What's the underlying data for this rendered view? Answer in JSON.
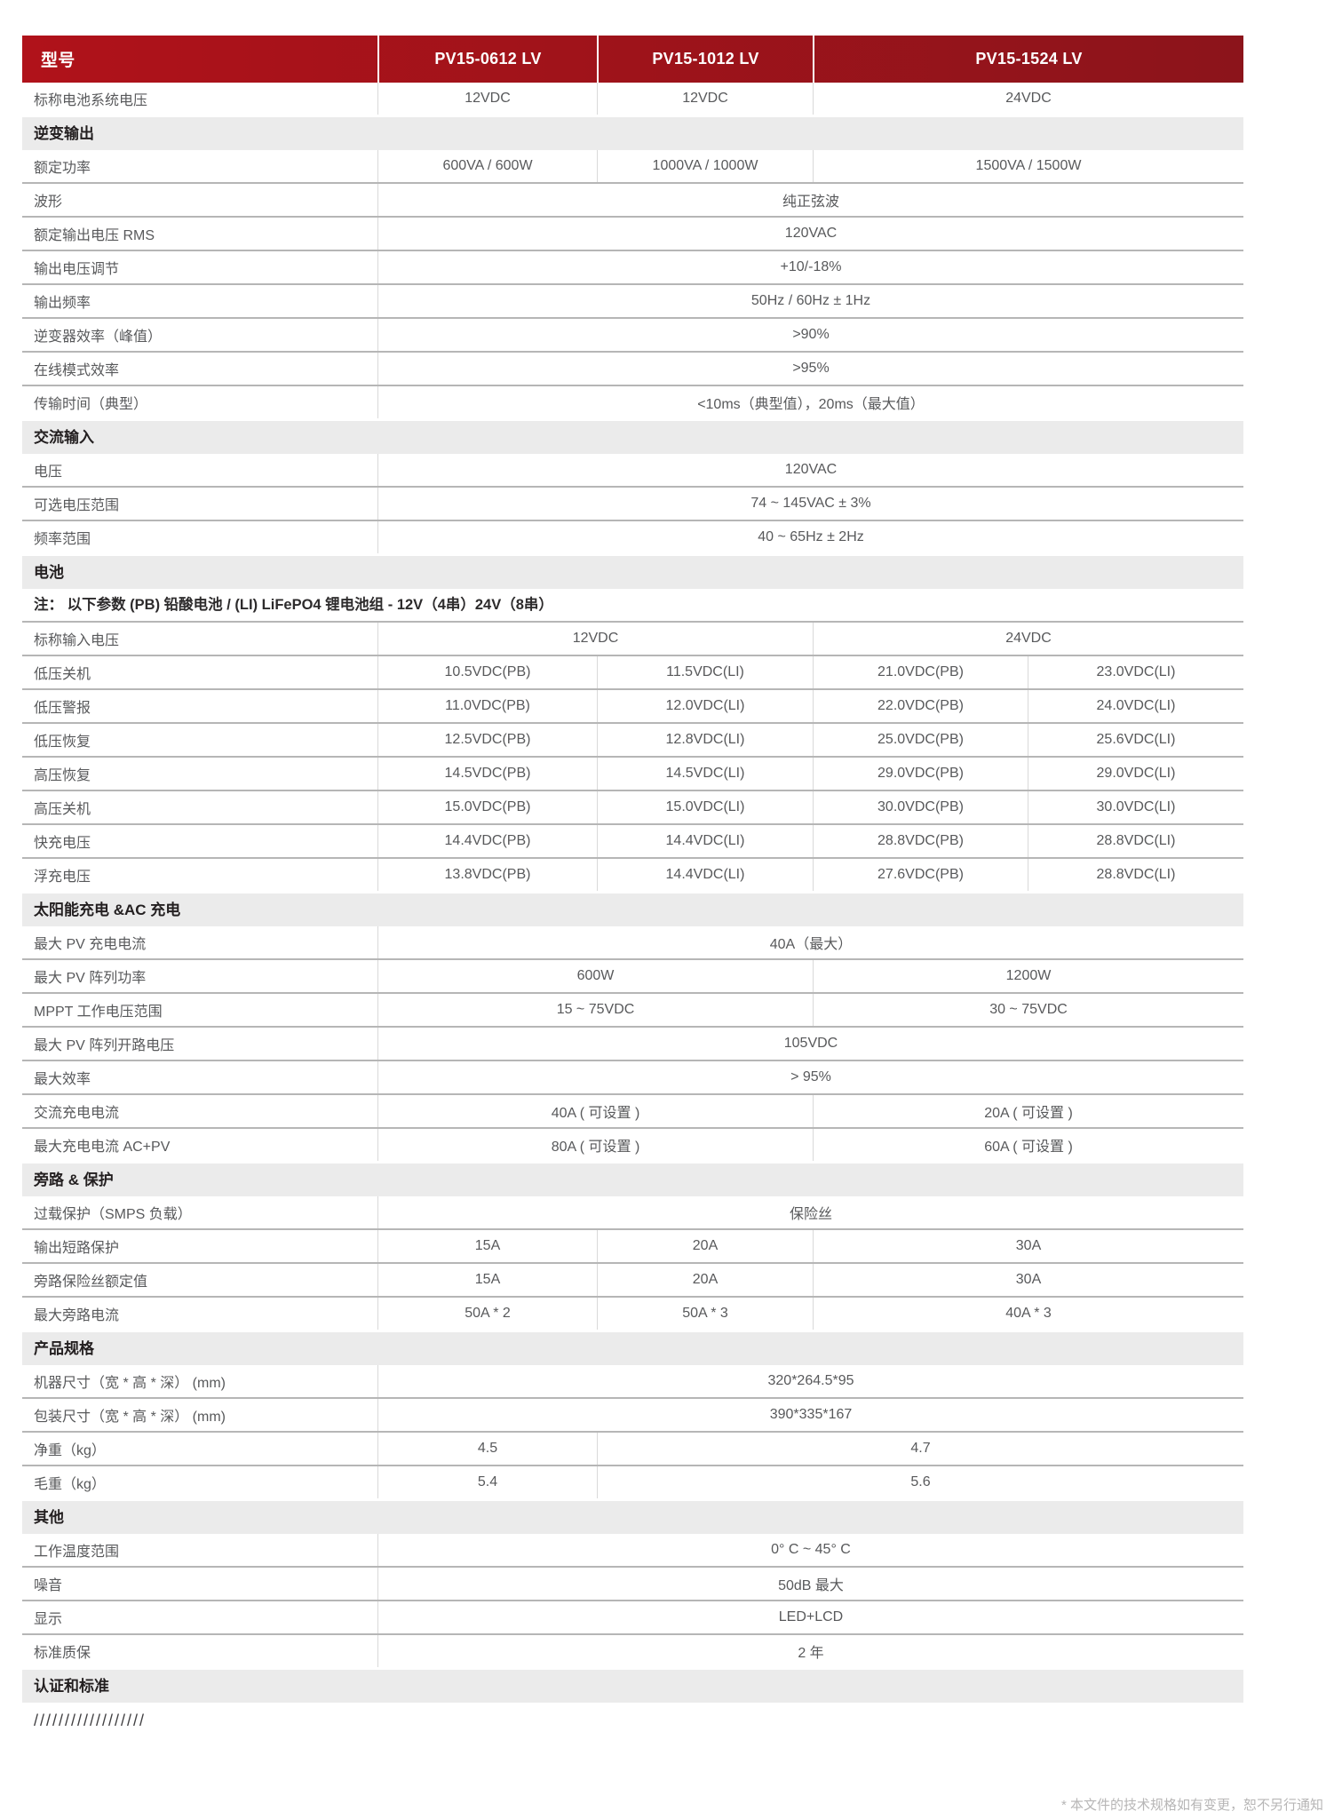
{
  "table": {
    "header": {
      "col0": "型号",
      "models": [
        {
          "text": "PV15-0612 LV",
          "span": 1
        },
        {
          "text": "PV15-1012 LV",
          "span": 1
        },
        {
          "text": "PV15-1524 LV",
          "span": 2
        }
      ]
    },
    "sections": [
      {
        "title": "",
        "rows": [
          {
            "label": "标称电池系统电压",
            "cells": [
              {
                "text": "12VDC",
                "span": 1
              },
              {
                "text": "12VDC",
                "span": 1
              },
              {
                "text": "24VDC",
                "span": 2
              }
            ]
          }
        ]
      },
      {
        "title": "逆变输出",
        "rows": [
          {
            "label": "额定功率",
            "cells": [
              {
                "text": "600VA / 600W",
                "span": 1
              },
              {
                "text": "1000VA / 1000W",
                "span": 1
              },
              {
                "text": "1500VA / 1500W",
                "span": 2
              }
            ]
          },
          {
            "label": "波形",
            "cells": [
              {
                "text": "纯正弦波",
                "span": 4
              }
            ]
          },
          {
            "label": "额定输出电压 RMS",
            "cells": [
              {
                "text": "120VAC",
                "span": 4
              }
            ]
          },
          {
            "label": "输出电压调节",
            "cells": [
              {
                "text": "+10/-18%",
                "span": 4
              }
            ]
          },
          {
            "label": "输出频率",
            "cells": [
              {
                "text": "50Hz / 60Hz ± 1Hz",
                "span": 4
              }
            ]
          },
          {
            "label": "逆变器效率（峰值）",
            "cells": [
              {
                "text": ">90%",
                "span": 4
              }
            ]
          },
          {
            "label": "在线模式效率",
            "cells": [
              {
                "text": ">95%",
                "span": 4
              }
            ]
          },
          {
            "label": "传输时间（典型）",
            "cells": [
              {
                "text": "<10ms（典型值），20ms（最大值）",
                "span": 4
              }
            ]
          }
        ]
      },
      {
        "title": "交流输入",
        "rows": [
          {
            "label": "电压",
            "cells": [
              {
                "text": "120VAC",
                "span": 4
              }
            ]
          },
          {
            "label": "可选电压范围",
            "cells": [
              {
                "text": "74 ~ 145VAC ± 3%",
                "span": 4
              }
            ]
          },
          {
            "label": "频率范围",
            "cells": [
              {
                "text": "40 ~ 65Hz ± 2Hz",
                "span": 4
              }
            ]
          }
        ]
      },
      {
        "title": "电池",
        "rows": [
          {
            "note": "注： 以下参数 (PB) 铅酸电池 / (LI) LiFePO4 锂电池组 - 12V（4串）24V（8串）"
          },
          {
            "label": "标称输入电压",
            "cells": [
              {
                "text": "12VDC",
                "span": 2
              },
              {
                "text": "24VDC",
                "span": 2
              }
            ]
          },
          {
            "label": "低压关机",
            "cells": [
              {
                "text": "10.5VDC(PB)",
                "span": 1
              },
              {
                "text": "11.5VDC(LI)",
                "span": 1
              },
              {
                "text": "21.0VDC(PB)",
                "span": 1
              },
              {
                "text": "23.0VDC(LI)",
                "span": 1
              }
            ]
          },
          {
            "label": "低压警报",
            "cells": [
              {
                "text": "11.0VDC(PB)",
                "span": 1
              },
              {
                "text": "12.0VDC(LI)",
                "span": 1
              },
              {
                "text": "22.0VDC(PB)",
                "span": 1
              },
              {
                "text": "24.0VDC(LI)",
                "span": 1
              }
            ]
          },
          {
            "label": "低压恢复",
            "cells": [
              {
                "text": "12.5VDC(PB)",
                "span": 1
              },
              {
                "text": "12.8VDC(LI)",
                "span": 1
              },
              {
                "text": "25.0VDC(PB)",
                "span": 1
              },
              {
                "text": "25.6VDC(LI)",
                "span": 1
              }
            ]
          },
          {
            "label": "高压恢复",
            "cells": [
              {
                "text": "14.5VDC(PB)",
                "span": 1
              },
              {
                "text": "14.5VDC(LI)",
                "span": 1
              },
              {
                "text": "29.0VDC(PB)",
                "span": 1
              },
              {
                "text": "29.0VDC(LI)",
                "span": 1
              }
            ]
          },
          {
            "label": "高压关机",
            "cells": [
              {
                "text": "15.0VDC(PB)",
                "span": 1
              },
              {
                "text": "15.0VDC(LI)",
                "span": 1
              },
              {
                "text": "30.0VDC(PB)",
                "span": 1
              },
              {
                "text": "30.0VDC(LI)",
                "span": 1
              }
            ]
          },
          {
            "label": "快充电压",
            "cells": [
              {
                "text": "14.4VDC(PB)",
                "span": 1
              },
              {
                "text": "14.4VDC(LI)",
                "span": 1
              },
              {
                "text": "28.8VDC(PB)",
                "span": 1
              },
              {
                "text": "28.8VDC(LI)",
                "span": 1
              }
            ]
          },
          {
            "label": "浮充电压",
            "cells": [
              {
                "text": "13.8VDC(PB)",
                "span": 1
              },
              {
                "text": "14.4VDC(LI)",
                "span": 1
              },
              {
                "text": "27.6VDC(PB)",
                "span": 1
              },
              {
                "text": "28.8VDC(LI)",
                "span": 1
              }
            ]
          }
        ]
      },
      {
        "title": "太阳能充电 &AC 充电",
        "rows": [
          {
            "label": "最大 PV 充电电流",
            "cells": [
              {
                "text": "40A（最大）",
                "span": 4
              }
            ]
          },
          {
            "label": "最大 PV 阵列功率",
            "cells": [
              {
                "text": "600W",
                "span": 2
              },
              {
                "text": "1200W",
                "span": 2
              }
            ]
          },
          {
            "label": "MPPT 工作电压范围",
            "cells": [
              {
                "text": "15 ~ 75VDC",
                "span": 2
              },
              {
                "text": "30 ~ 75VDC",
                "span": 2
              }
            ]
          },
          {
            "label": "最大 PV 阵列开路电压",
            "cells": [
              {
                "text": "105VDC",
                "span": 4
              }
            ]
          },
          {
            "label": "最大效率",
            "cells": [
              {
                "text": "> 95%",
                "span": 4
              }
            ]
          },
          {
            "label": "交流充电电流",
            "cells": [
              {
                "text": "40A ( 可设置 )",
                "span": 2
              },
              {
                "text": "20A ( 可设置 )",
                "span": 2
              }
            ]
          },
          {
            "label": "最大充电电流 AC+PV",
            "cells": [
              {
                "text": "80A ( 可设置 )",
                "span": 2
              },
              {
                "text": "60A ( 可设置 )",
                "span": 2
              }
            ]
          }
        ]
      },
      {
        "title": "旁路 & 保护",
        "rows": [
          {
            "label": "过载保护（SMPS 负载）",
            "cells": [
              {
                "text": "保险丝",
                "span": 4
              }
            ]
          },
          {
            "label": "输出短路保护",
            "cells": [
              {
                "text": "15A",
                "span": 1
              },
              {
                "text": "20A",
                "span": 1
              },
              {
                "text": "30A",
                "span": 2
              }
            ]
          },
          {
            "label": "旁路保险丝额定值",
            "cells": [
              {
                "text": "15A",
                "span": 1
              },
              {
                "text": "20A",
                "span": 1
              },
              {
                "text": "30A",
                "span": 2
              }
            ]
          },
          {
            "label": "最大旁路电流",
            "cells": [
              {
                "text": "50A * 2",
                "span": 1
              },
              {
                "text": "50A * 3",
                "span": 1
              },
              {
                "text": "40A * 3",
                "span": 2
              }
            ]
          }
        ]
      },
      {
        "title": "产品规格",
        "rows": [
          {
            "label": "机器尺寸（宽 * 高 * 深） (mm)",
            "cells": [
              {
                "text": "320*264.5*95",
                "span": 4
              }
            ]
          },
          {
            "label": "包装尺寸（宽 * 高 * 深） (mm)",
            "cells": [
              {
                "text": "390*335*167",
                "span": 4
              }
            ]
          },
          {
            "label": "净重（kg）",
            "cells": [
              {
                "text": "4.5",
                "span": 1
              },
              {
                "text": "4.7",
                "span": 3
              }
            ]
          },
          {
            "label": "毛重（kg）",
            "cells": [
              {
                "text": "5.4",
                "span": 1
              },
              {
                "text": "5.6",
                "span": 3
              }
            ]
          }
        ]
      },
      {
        "title": "其他",
        "rows": [
          {
            "label": "工作温度范围",
            "cells": [
              {
                "text": "0° C ~ 45° C",
                "span": 4
              }
            ]
          },
          {
            "label": "噪音",
            "cells": [
              {
                "text": "50dB 最大",
                "span": 4
              }
            ]
          },
          {
            "label": "显示",
            "cells": [
              {
                "text": "LED+LCD",
                "span": 4
              }
            ]
          },
          {
            "label": "标准质保",
            "cells": [
              {
                "text": "2 年",
                "span": 4
              }
            ]
          }
        ]
      },
      {
        "title": "认证和标准",
        "rows": [
          {
            "note": "//////////////////",
            "slashes": true
          }
        ]
      }
    ]
  },
  "colors": {
    "header_red_left": "#b0121a",
    "header_red_right": "#8c141b",
    "section_bar_bg": "#ebebeb",
    "row_divider": "#b6b6b6",
    "cell_divider": "#d9d9d9",
    "body_text": "#58595b",
    "footer_text": "#b7b6b6"
  },
  "footer": {
    "note": "* 本文件的技术规格如有变更，恕不另行通知"
  }
}
